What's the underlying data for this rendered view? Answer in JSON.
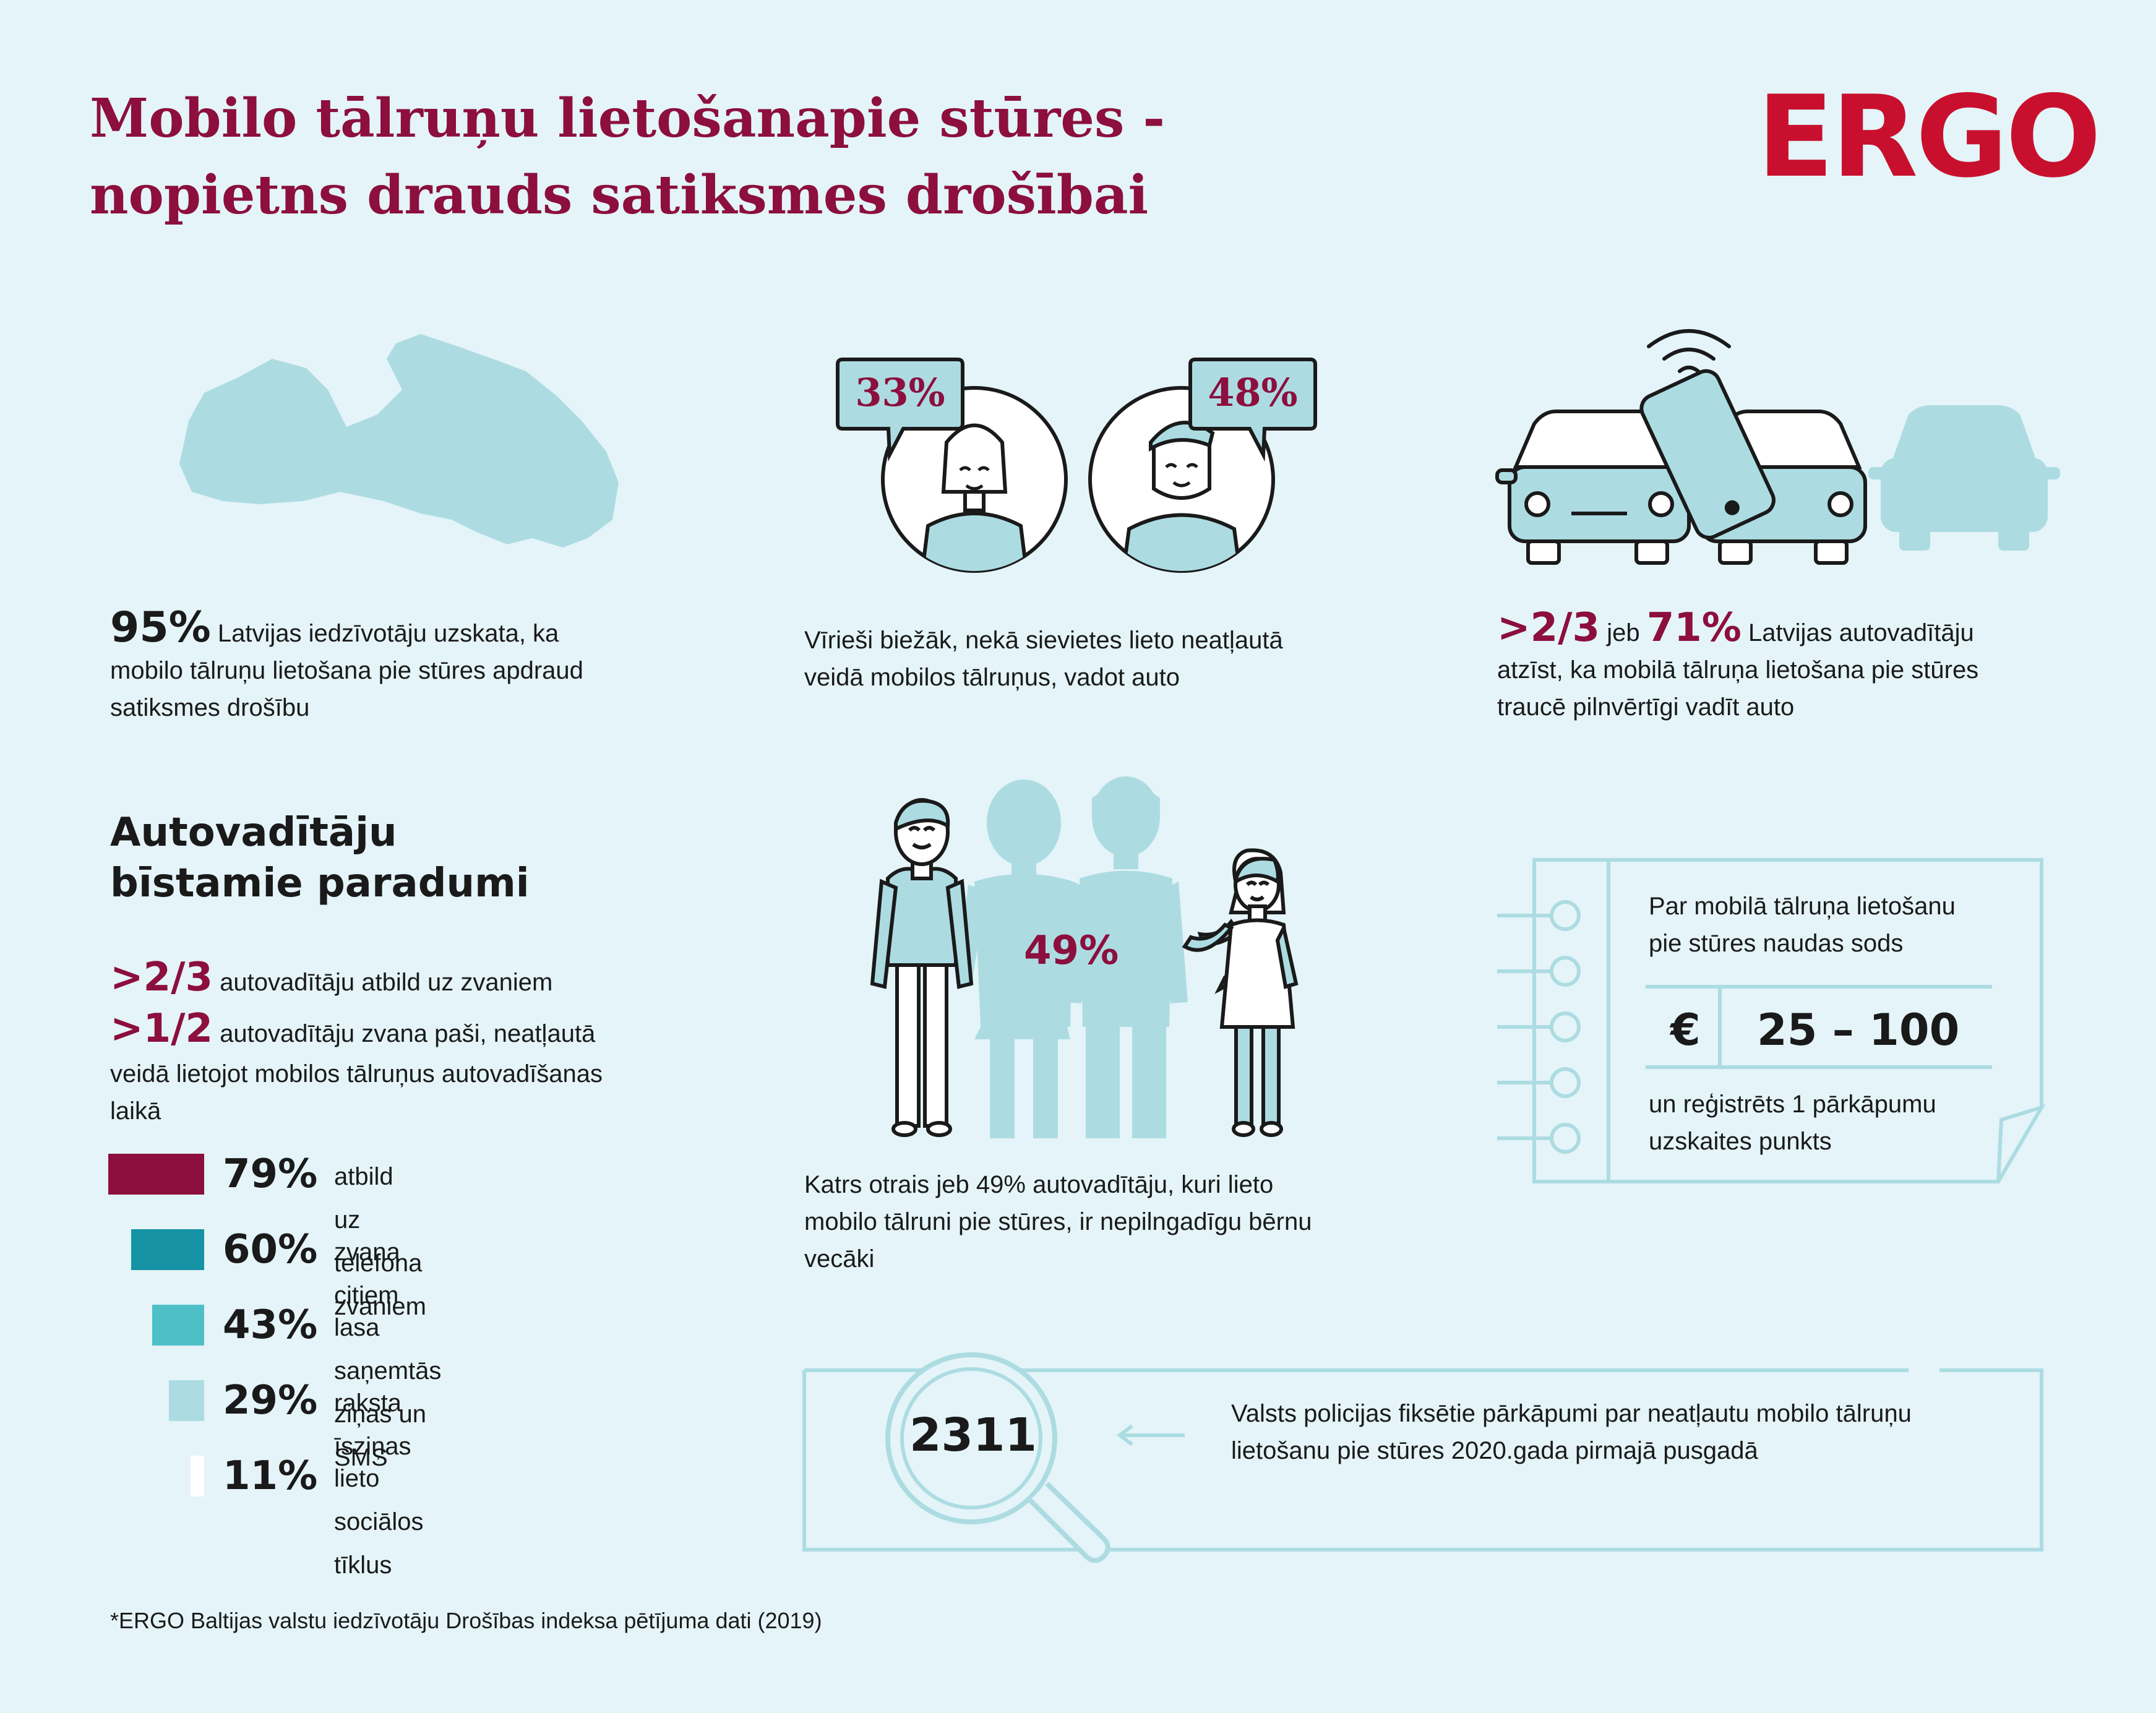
{
  "header": {
    "title_line1": "Mobilo tālruņu lietošanapie stūres -",
    "title_line2": "nopietns drauds satiksmes drošībai",
    "logo": "ERGO"
  },
  "colors": {
    "maroon": "#8c0f3e",
    "logo_red": "#c8102e",
    "light_teal": "#acdce2",
    "mid_teal": "#4ebfc7",
    "dark_teal": "#1592a4",
    "background": "#e4f4f8"
  },
  "stats": {
    "latvia": {
      "icon": "latvia-map-icon",
      "pct": "95%",
      "text_line1": "Latvijas iedzīvotāju uzskata, ka",
      "text_line2": "mobilo tālruņu lietošana pie stūres apdraud",
      "text_line3": "satiksmes drošību"
    },
    "gender": {
      "female_pct": "33%",
      "male_pct": "48%",
      "text_line1": "Vīrieši biežāk, nekā sievietes lieto neatļautā",
      "text_line2": "veidā mobilos tālruņus, vadot auto"
    },
    "cars": {
      "icon": "cars-phone-icon",
      "fraction": ">2/3",
      "connector": "jeb",
      "pct": "71%",
      "text_line1": "Latvijas autovadītāju",
      "text_line2": "atzīst, ka mobilā tālruņa lietošana pie stūres",
      "text_line3": "traucē pilnvērtīgi vadīt auto"
    }
  },
  "habits": {
    "heading_line1": "Autovadītāju",
    "heading_line2": "bīstamie paradumi",
    "fact1_value": ">2/3",
    "fact1_text": "autovadītāju atbild uz zvaniem",
    "fact2_value": ">1/2",
    "fact2_text_line1": "autovadītāju zvana paši, neatļautā",
    "fact2_text_line2": "veidā lietojot mobilos tālruņus autovadīšanas",
    "fact2_text_line3": "laikā",
    "bars": [
      {
        "pct": "79%",
        "value": 79,
        "label": "atbild uz telefona zvaniem",
        "color": "#8c0f3e"
      },
      {
        "pct": "60%",
        "value": 60,
        "label": "zvana citiem",
        "color": "#1592a4"
      },
      {
        "pct": "43%",
        "value": 43,
        "label": "lasa saņemtās ziņas un SMS",
        "color": "#4ebfc7"
      },
      {
        "pct": "29%",
        "value": 29,
        "label": "raksta īsziņas",
        "color": "#acdce2"
      },
      {
        "pct": "11%",
        "value": 11,
        "label": "lieto sociālos tīklus",
        "color": "#ffffff"
      }
    ]
  },
  "family": {
    "pct": "49%",
    "text_line1": "Katrs otrais jeb 49% autovadītāju, kuri lieto",
    "text_line2": "mobilo tālruni pie stūres, ir nepilngadīgu bērnu",
    "text_line3": "vecāki"
  },
  "fine": {
    "text_line1": "Par mobilā tālruņa lietošanu",
    "text_line2": "pie stūres naudas sods",
    "currency": "€",
    "amount": "25 – 100",
    "note_line1": "un reģistrēts 1 pārkāpumu",
    "note_line2": "uzskaites punkts"
  },
  "police": {
    "number": "2311",
    "text_line1": "Valsts policijas fiksētie pārkāpumi par neatļautu mobilo tālruņu",
    "text_line2": "lietošanu pie stūres 2020.gada pirmajā pusgadā"
  },
  "footnote": "*ERGO Baltijas valstu iedzīvotāju Drošības indeksa pētījuma dati (2019)"
}
